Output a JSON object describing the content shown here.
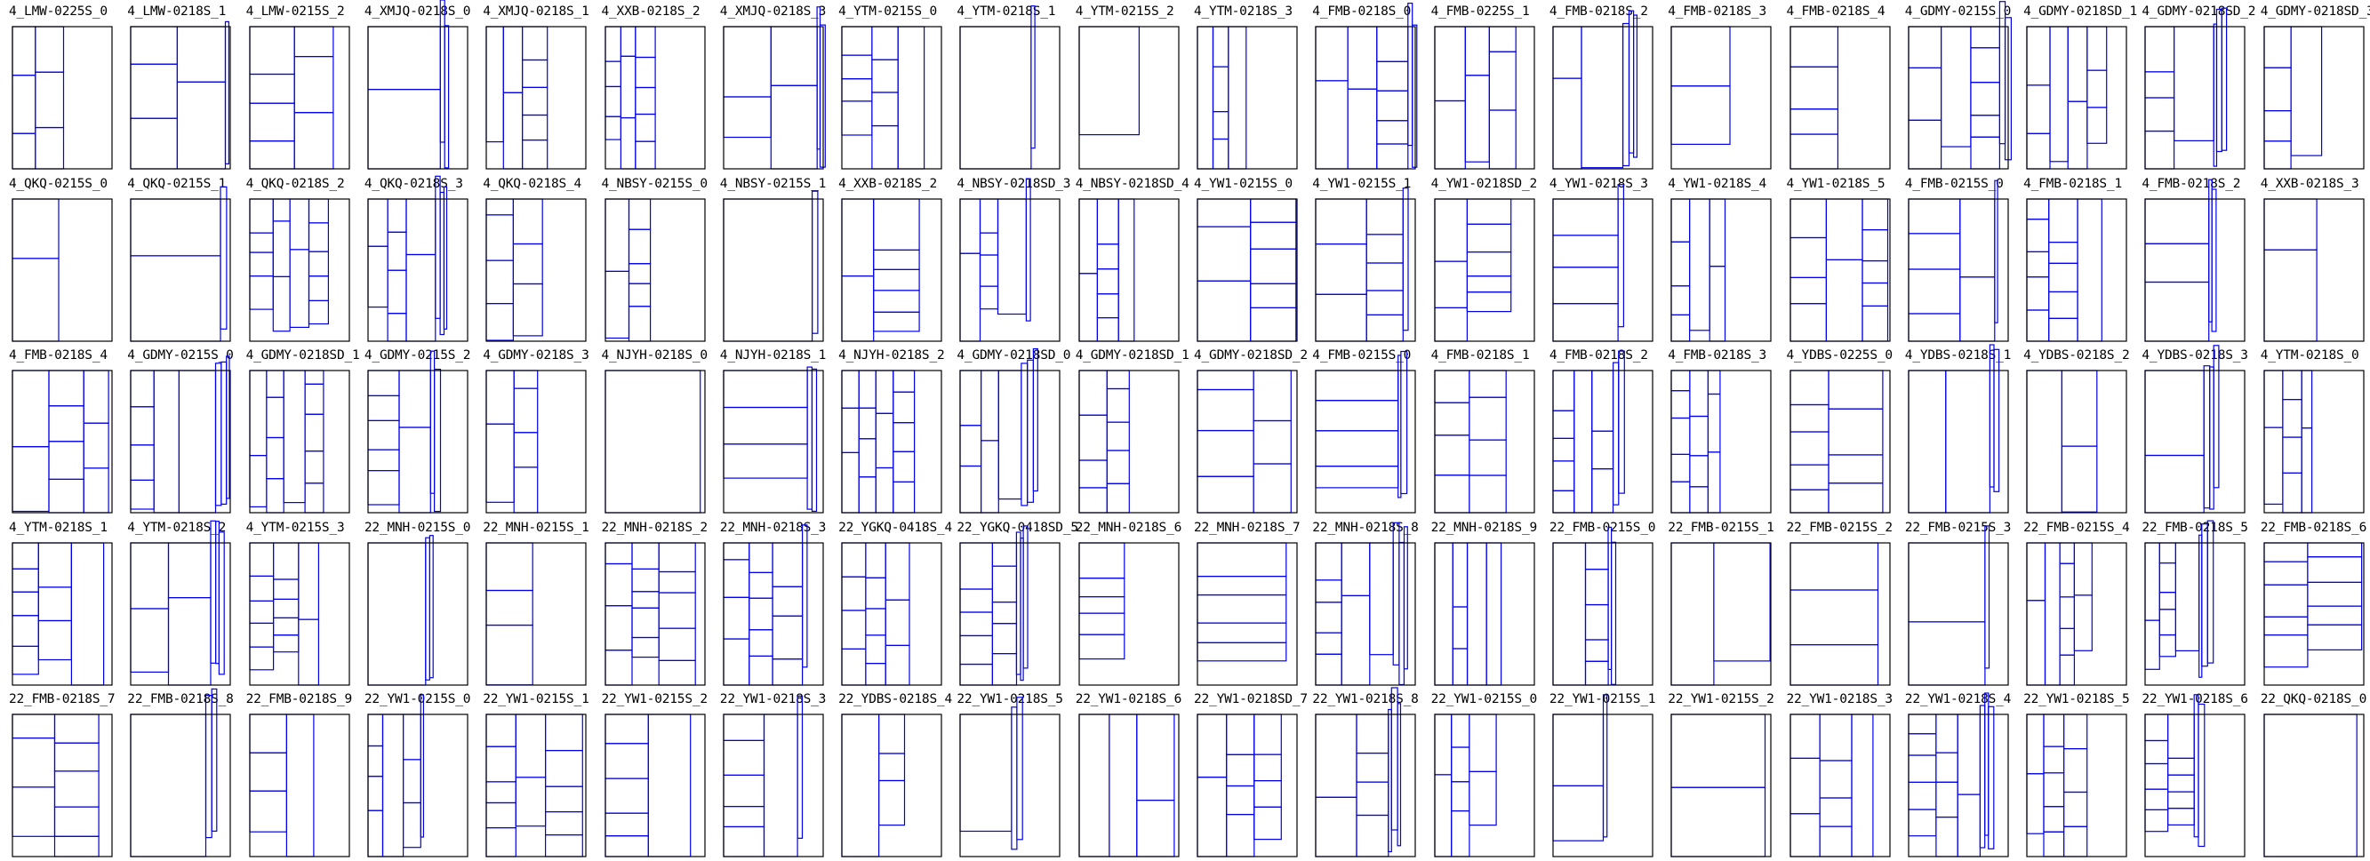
{
  "colors": {
    "frame": "#000000",
    "piece": "#0000ee",
    "background": "#ffffff"
  },
  "plots": [
    "4_LMW-0225S_0",
    "4_LMW-0218S_1",
    "4_LMW-0215S_2",
    "4_XMJQ-0218S_0",
    "4_XMJQ-0218S_1",
    "4_XXB-0218S_2",
    "4_XMJQ-0218S_3",
    "4_YTM-0215S_0",
    "4_YTM-0218S_1",
    "4_YTM-0215S_2",
    "4_YTM-0218S_3",
    "4_FMB-0218S_0",
    "4_FMB-0225S_1",
    "4_FMB-0218S_2",
    "4_FMB-0218S_3",
    "4_FMB-0218S_4",
    "4_GDMY-0215S_0",
    "4_GDMY-0218SD_1",
    "4_GDMY-0218SD_2",
    "4_GDMY-0218SD_3",
    "4_QKQ-0215S_0",
    "4_QKQ-0215S_1",
    "4_QKQ-0218S_2",
    "4_QKQ-0218S_3",
    "4_QKQ-0218S_4",
    "4_NBSY-0215S_0",
    "4_NBSY-0215S_1",
    "4_XXB-0218S_2",
    "4_NBSY-0218SD_3",
    "4_NBSY-0218SD_4",
    "4_YW1-0215S_0",
    "4_YW1-0215S_1",
    "4_YW1-0218SD_2",
    "4_YW1-0218S_3",
    "4_YW1-0218S_4",
    "4_YW1-0218S_5",
    "4_FMB-0215S_0",
    "4_FMB-0218S_1",
    "4_FMB-0218S_2",
    "4_XXB-0218S_3",
    "4_FMB-0218S_4",
    "4_GDMY-0215S_0",
    "4_GDMY-0218SD_1",
    "4_GDMY-0215S_2",
    "4_GDMY-0218S_3",
    "4_NJYH-0218S_0",
    "4_NJYH-0218S_1",
    "4_NJYH-0218S_2",
    "4_GDMY-0218SD_0",
    "4_GDMY-0218SD_1",
    "4_GDMY-0218SD_2",
    "4_FMB-0215S_0",
    "4_FMB-0218S_1",
    "4_FMB-0218S_2",
    "4_FMB-0218S_3",
    "4_YDBS-0225S_0",
    "4_YDBS-0218S_1",
    "4_YDBS-0218S_2",
    "4_YDBS-0218S_3",
    "4_YTM-0218S_0",
    "4_YTM-0218S_1",
    "4_YTM-0218S_2",
    "4_YTM-0215S_3",
    "22_MNH-0215S_0",
    "22_MNH-0215S_1",
    "22_MNH-0218S_2",
    "22_MNH-0218S_3",
    "22_YGKQ-0418S_4",
    "22_YGKQ-0418SD_5",
    "22_MNH-0218S_6",
    "22_MNH-0218S_7",
    "22_MNH-0218S_8",
    "22_MNH-0218S_9",
    "22_FMB-0215S_0",
    "22_FMB-0215S_1",
    "22_FMB-0215S_2",
    "22_FMB-0215S_3",
    "22_FMB-0215S_4",
    "22_FMB-0218S_5",
    "22_FMB-0218S_6",
    "22_FMB-0218S_7",
    "22_FMB-0218S_8",
    "22_FMB-0218S_9",
    "22_YW1-0215S_0",
    "22_YW1-0215S_1",
    "22_YW1-0215S_2",
    "22_YW1-0218S_3",
    "22_YDBS-0218S_4",
    "22_YW1-0218S_5",
    "22_YW1-0218S_6",
    "22_YW1-0218SD_7",
    "22_YW1-0218S_8",
    "22_YW1-0215S_0",
    "22_YW1-0215S_1",
    "22_YW1-0215S_2",
    "22_YW1-0218S_3",
    "22_YW1-0218S_4",
    "22_YW1-0218S_5",
    "22_YW1-0218S_6",
    "22_QKQ-0218S_0"
  ]
}
